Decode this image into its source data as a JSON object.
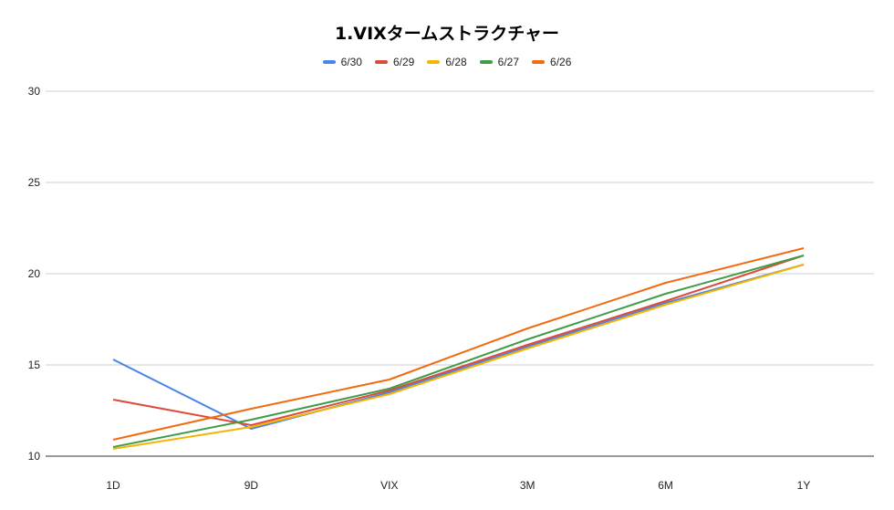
{
  "chart_data": {
    "type": "line",
    "title": "1.VIXタームストラクチャー",
    "categories": [
      "1D",
      "9D",
      "VIX",
      "3M",
      "6M",
      "1Y"
    ],
    "ylim": [
      10,
      30
    ],
    "yticks": [
      "10",
      "15",
      "20",
      "25",
      "30"
    ],
    "grid": true,
    "legend_position": "top",
    "series": [
      {
        "name": "6/30",
        "color": "#4a86e8",
        "values": [
          15.3,
          11.5,
          13.5,
          16.0,
          18.4,
          20.5
        ]
      },
      {
        "name": "6/29",
        "color": "#dd4b39",
        "values": [
          13.1,
          11.7,
          13.6,
          16.1,
          18.5,
          21.0
        ]
      },
      {
        "name": "6/28",
        "color": "#f4b400",
        "values": [
          10.4,
          11.6,
          13.4,
          15.9,
          18.3,
          20.5
        ]
      },
      {
        "name": "6/27",
        "color": "#3f9c48",
        "values": [
          10.5,
          12.0,
          13.7,
          16.4,
          18.9,
          21.0
        ]
      },
      {
        "name": "6/26",
        "color": "#f26b0f",
        "values": [
          10.9,
          12.6,
          14.2,
          17.0,
          19.5,
          21.4
        ]
      }
    ]
  }
}
